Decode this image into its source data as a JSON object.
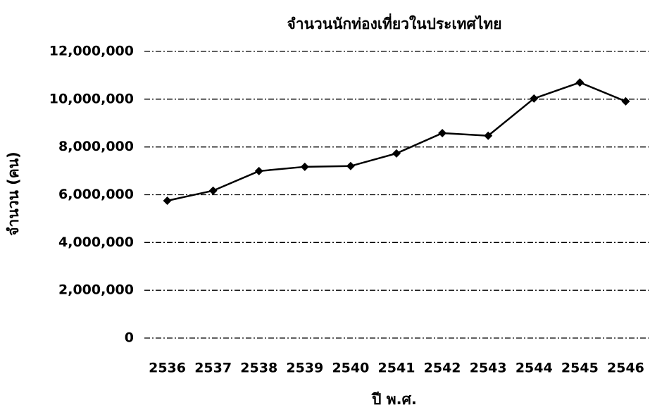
{
  "chart_data": {
    "type": "line",
    "title": "จำนวนนักท่องเที่ยวในประเทศไทย",
    "x_label": "ปี พ.ศ.",
    "y_label": "จำนวน (คน)",
    "categories": [
      "2536",
      "2537",
      "2538",
      "2539",
      "2540",
      "2541",
      "2542",
      "2543",
      "2544",
      "2545",
      "2546"
    ],
    "series": [
      {
        "name": "จำนวน",
        "color": "#000000",
        "values": [
          5750000,
          6170000,
          6990000,
          7170000,
          7200000,
          7730000,
          8580000,
          8470000,
          10030000,
          10700000,
          9910000
        ]
      }
    ],
    "ylim": [
      0,
      12000000
    ],
    "yticks": [
      0,
      {
        "value": 2000000,
        "label": "2,000,000"
      },
      {
        "value": 4000000,
        "label": "4,000,000"
      },
      {
        "value": 6000000,
        "label": "6,000,000"
      },
      {
        "value": 8000000,
        "label": "8,000,000"
      },
      {
        "value": 10000000,
        "label": "10,000,000"
      },
      {
        "value": 12000000,
        "label": "12,000,000"
      }
    ],
    "grid": true
  }
}
